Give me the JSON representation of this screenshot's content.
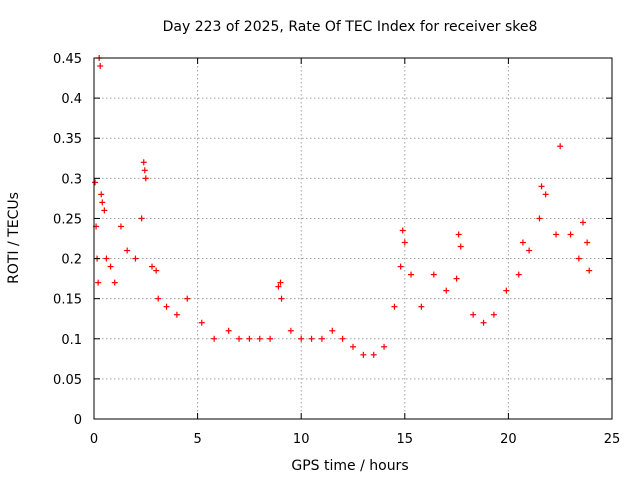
{
  "chart_data": {
    "type": "scatter",
    "title": "Day 223 of 2025, Rate Of TEC Index for receiver ske8",
    "xlabel": "GPS time / hours",
    "ylabel": "ROTI / TECUs",
    "xlim": [
      0,
      25
    ],
    "ylim": [
      0,
      0.45
    ],
    "xticks": [
      "0",
      "5",
      "10",
      "15",
      "20",
      "25"
    ],
    "yticks": [
      "0",
      "0.05",
      "0.1",
      "0.15",
      "0.2",
      "0.25",
      "0.3",
      "0.35",
      "0.4",
      "0.45"
    ],
    "grid": true,
    "marker": "+",
    "color": "#ff0000",
    "series": [
      {
        "name": "ROTI",
        "x": [
          0.05,
          0.1,
          0.15,
          0.2,
          0.25,
          0.3,
          0.35,
          0.4,
          0.5,
          0.6,
          0.8,
          1.0,
          1.3,
          1.6,
          2.0,
          2.3,
          2.4,
          2.45,
          2.5,
          2.8,
          3.0,
          3.1,
          3.5,
          4.0,
          4.5,
          5.2,
          5.8,
          6.5,
          7.0,
          7.5,
          8.0,
          8.5,
          8.9,
          9.0,
          9.05,
          9.5,
          10.0,
          10.5,
          11.0,
          11.5,
          12.0,
          12.5,
          13.0,
          13.5,
          14.0,
          14.5,
          14.8,
          14.9,
          15.0,
          15.3,
          15.8,
          16.4,
          17.0,
          17.5,
          17.6,
          17.7,
          18.3,
          18.8,
          19.3,
          19.9,
          20.5,
          20.7,
          21.0,
          21.5,
          21.6,
          21.8,
          22.3,
          22.5,
          23.0,
          23.4,
          23.6,
          23.8,
          23.9
        ],
        "y": [
          0.295,
          0.24,
          0.2,
          0.17,
          0.45,
          0.44,
          0.28,
          0.27,
          0.26,
          0.2,
          0.19,
          0.17,
          0.24,
          0.21,
          0.2,
          0.25,
          0.32,
          0.31,
          0.3,
          0.19,
          0.185,
          0.15,
          0.14,
          0.13,
          0.15,
          0.12,
          0.1,
          0.11,
          0.1,
          0.1,
          0.1,
          0.1,
          0.165,
          0.17,
          0.15,
          0.11,
          0.1,
          0.1,
          0.1,
          0.11,
          0.1,
          0.09,
          0.08,
          0.08,
          0.09,
          0.14,
          0.19,
          0.235,
          0.22,
          0.18,
          0.14,
          0.18,
          0.16,
          0.175,
          0.23,
          0.215,
          0.13,
          0.12,
          0.13,
          0.16,
          0.18,
          0.22,
          0.21,
          0.25,
          0.29,
          0.28,
          0.23,
          0.34,
          0.23,
          0.2,
          0.245,
          0.22,
          0.185
        ]
      }
    ]
  }
}
